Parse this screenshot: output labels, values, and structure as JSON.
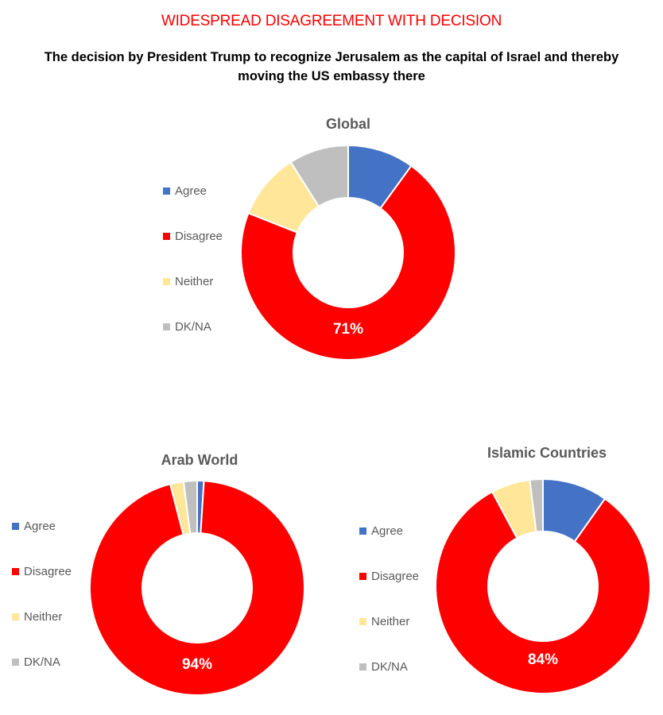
{
  "headline": "WIDESPREAD DISAGREEMENT WITH DECISION",
  "subtitle": "The decision by President Trump to recognize Jerusalem as the capital of Israel and thereby moving the US embassy there",
  "colors": {
    "Agree": "#4472c4",
    "Disagree": "#ff0000",
    "Neither": "#ffe699",
    "DK/NA": "#bfbfbf"
  },
  "chart_data": [
    {
      "type": "pie",
      "title": "Global",
      "categories": [
        "Agree",
        "Disagree",
        "Neither",
        "DK/NA"
      ],
      "values": [
        10,
        71,
        10,
        9
      ],
      "data_label": "71%",
      "legend_position": "left"
    },
    {
      "type": "pie",
      "title": "Arab World",
      "categories": [
        "Agree",
        "Disagree",
        "Neither",
        "DK/NA"
      ],
      "values": [
        1,
        94,
        2,
        2
      ],
      "data_label": "94%",
      "legend_position": "left"
    },
    {
      "type": "pie",
      "title": "Islamic Countries",
      "categories": [
        "Agree",
        "Disagree",
        "Neither",
        "DK/NA"
      ],
      "values": [
        10,
        84,
        6,
        2
      ],
      "data_label": "84%",
      "legend_position": "left"
    }
  ]
}
